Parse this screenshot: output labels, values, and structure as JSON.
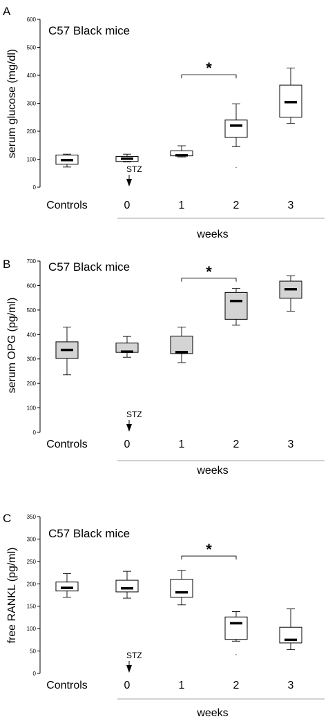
{
  "chart_data": [
    {
      "type": "box",
      "panel_letter": "A",
      "title": "C57 Black mice",
      "ylabel": "serum glucose (mg/dl)",
      "xlabel": "weeks",
      "ylim": [
        0,
        600
      ],
      "yticks": [
        0,
        100,
        200,
        300,
        400,
        500,
        600
      ],
      "categories": [
        "Controls",
        "0",
        "1",
        "2",
        "3"
      ],
      "fill_color": "#ffffff",
      "boxes": [
        {
          "min": 72,
          "q1": 82,
          "median": 97,
          "q3": 115,
          "max": 118
        },
        {
          "min": 90,
          "q1": 92,
          "median": 102,
          "q3": 110,
          "max": 118
        },
        {
          "min": 108,
          "q1": 112,
          "median": 114,
          "q3": 130,
          "max": 148
        },
        {
          "min": 145,
          "q1": 178,
          "median": 220,
          "q3": 240,
          "max": 298
        },
        {
          "min": 228,
          "q1": 250,
          "median": 304,
          "q3": 365,
          "max": 426
        }
      ],
      "outliers": [
        {
          "cat": 3,
          "y": 70
        }
      ],
      "marker": {
        "label": "STZ",
        "cat": 1
      },
      "significance": {
        "from": 2,
        "to": 3,
        "label": "*",
        "y": 402
      }
    },
    {
      "type": "box",
      "panel_letter": "B",
      "title": "C57 Black mice",
      "ylabel": "serum OPG (pg/ml)",
      "xlabel": "weeks",
      "ylim": [
        0,
        700
      ],
      "yticks": [
        0,
        100,
        200,
        300,
        400,
        500,
        600,
        700
      ],
      "categories": [
        "Controls",
        "0",
        "1",
        "2",
        "3"
      ],
      "fill_color": "#d4d4d4",
      "boxes": [
        {
          "min": 235,
          "q1": 302,
          "median": 337,
          "q3": 370,
          "max": 430
        },
        {
          "min": 307,
          "q1": 327,
          "median": 330,
          "q3": 365,
          "max": 392
        },
        {
          "min": 285,
          "q1": 322,
          "median": 328,
          "q3": 393,
          "max": 430
        },
        {
          "min": 438,
          "q1": 462,
          "median": 537,
          "q3": 572,
          "max": 588
        },
        {
          "min": 495,
          "q1": 548,
          "median": 585,
          "q3": 618,
          "max": 640
        }
      ],
      "outliers": [],
      "marker": {
        "label": "STZ",
        "cat": 1
      },
      "significance": {
        "from": 2,
        "to": 3,
        "label": "*",
        "y": 630
      }
    },
    {
      "type": "box",
      "panel_letter": "C",
      "title": "C57 Black mice",
      "ylabel": "free RANKL (pg/ml)",
      "xlabel": "weeks",
      "ylim": [
        0,
        350
      ],
      "yticks": [
        0,
        50,
        100,
        150,
        200,
        250,
        300,
        350
      ],
      "categories": [
        "Controls",
        "0",
        "1",
        "2",
        "3"
      ],
      "fill_color": "#ffffff",
      "boxes": [
        {
          "min": 170,
          "q1": 184,
          "median": 191,
          "q3": 204,
          "max": 223
        },
        {
          "min": 168,
          "q1": 182,
          "median": 190,
          "q3": 208,
          "max": 228
        },
        {
          "min": 153,
          "q1": 170,
          "median": 181,
          "q3": 210,
          "max": 230
        },
        {
          "min": 72,
          "q1": 76,
          "median": 112,
          "q3": 126,
          "max": 138
        },
        {
          "min": 53,
          "q1": 68,
          "median": 75,
          "q3": 103,
          "max": 144
        }
      ],
      "outliers": [
        {
          "cat": 3,
          "y": 42
        }
      ],
      "marker": {
        "label": "STZ",
        "cat": 1
      },
      "significance": {
        "from": 2,
        "to": 3,
        "label": "*",
        "y": 262
      }
    }
  ]
}
